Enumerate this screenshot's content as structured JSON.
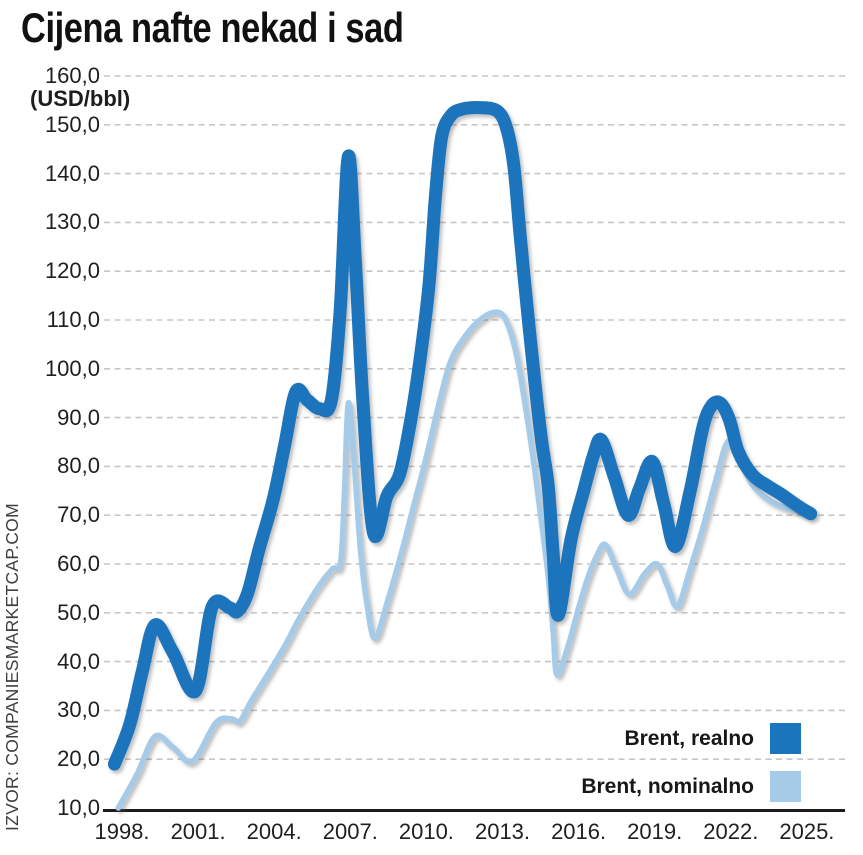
{
  "title": "Cijena nafte nekad i sad",
  "y_axis": {
    "unit_label": "(USD/bbl)",
    "tick_labels": [
      "160,0",
      "150,0",
      "140,0",
      "130,0",
      "120,0",
      "110,0",
      "100,0",
      "90,0",
      "80,0",
      "70,0",
      "60,0",
      "50,0",
      "40,0",
      "30,0",
      "20,0",
      "10,0"
    ]
  },
  "x_axis": {
    "tick_labels": [
      "1998.",
      "2001.",
      "2004.",
      "2007.",
      "2010.",
      "2013.",
      "2016.",
      "2019.",
      "2022.",
      "2025."
    ]
  },
  "legend": {
    "items": [
      {
        "label": "Brent, realno",
        "color": "#1b75bc"
      },
      {
        "label": "Brent, nominalno",
        "color": "#a6cbe8"
      }
    ]
  },
  "source": "IZVOR: COMPANIESMARKETCAP.COM",
  "chart_data": {
    "type": "line",
    "title": "Cijena nafte nekad i sad",
    "ylabel": "(USD/bbl)",
    "ylim": [
      10,
      160
    ],
    "y_tick_step": 10,
    "x_ticks": [
      1998,
      2001,
      2004,
      2007,
      2010,
      2013,
      2016,
      2019,
      2022,
      2025
    ],
    "x_range_plotted": [
      1997.7,
      2025.15
    ],
    "grid": "horizontal-dashed",
    "legend_position": "bottom-right",
    "series": [
      {
        "name": "Brent, realno",
        "color": "#1b75bc",
        "stroke_width": 13,
        "points": [
          [
            1997.7,
            19
          ],
          [
            1998.3,
            27
          ],
          [
            1998.8,
            38
          ],
          [
            1999.3,
            47.5
          ],
          [
            2000.0,
            42
          ],
          [
            2000.9,
            34
          ],
          [
            2001.55,
            51.2
          ],
          [
            2002.25,
            51
          ],
          [
            2002.55,
            50.3
          ],
          [
            2002.95,
            54
          ],
          [
            2003.4,
            63
          ],
          [
            2003.95,
            73
          ],
          [
            2004.4,
            84
          ],
          [
            2004.85,
            95.3
          ],
          [
            2005.3,
            93.6
          ],
          [
            2005.8,
            91.8
          ],
          [
            2006.25,
            93.5
          ],
          [
            2006.6,
            112
          ],
          [
            2006.92,
            143.5
          ],
          [
            2007.2,
            122
          ],
          [
            2007.5,
            93
          ],
          [
            2007.92,
            66.3
          ],
          [
            2008.45,
            74
          ],
          [
            2008.95,
            78.5
          ],
          [
            2009.4,
            90
          ],
          [
            2009.75,
            102
          ],
          [
            2010.1,
            117
          ],
          [
            2010.35,
            135
          ],
          [
            2010.6,
            147.5
          ],
          [
            2010.95,
            151.8
          ],
          [
            2011.4,
            153.2
          ],
          [
            2012.2,
            153.5
          ],
          [
            2012.8,
            152.8
          ],
          [
            2013.15,
            149.5
          ],
          [
            2013.45,
            141.5
          ],
          [
            2013.7,
            127
          ],
          [
            2014.0,
            111
          ],
          [
            2014.3,
            96
          ],
          [
            2014.55,
            85
          ],
          [
            2014.8,
            76
          ],
          [
            2015.0,
            62
          ],
          [
            2015.2,
            49.5
          ],
          [
            2015.7,
            65
          ],
          [
            2016.2,
            75
          ],
          [
            2016.6,
            82.5
          ],
          [
            2016.9,
            85.4
          ],
          [
            2017.4,
            78
          ],
          [
            2017.95,
            70
          ],
          [
            2018.4,
            75.5
          ],
          [
            2018.9,
            81
          ],
          [
            2019.35,
            72.5
          ],
          [
            2019.82,
            63.6
          ],
          [
            2020.4,
            75
          ],
          [
            2020.9,
            88
          ],
          [
            2021.25,
            92.5
          ],
          [
            2021.6,
            92.9
          ],
          [
            2021.95,
            89.5
          ],
          [
            2022.3,
            83
          ],
          [
            2022.85,
            78.3
          ],
          [
            2023.45,
            76
          ],
          [
            2023.95,
            74.4
          ],
          [
            2024.7,
            71.7
          ],
          [
            2025.15,
            70.3
          ]
        ]
      },
      {
        "name": "Brent, nominalno",
        "color": "#a6cbe8",
        "stroke_width": 5.5,
        "points": [
          [
            1997.85,
            10
          ],
          [
            1998.6,
            17
          ],
          [
            1999.3,
            24.7
          ],
          [
            2000.0,
            22.5
          ],
          [
            2000.78,
            19.6
          ],
          [
            2001.7,
            27.5
          ],
          [
            2002.3,
            28.3
          ],
          [
            2002.65,
            27.8
          ],
          [
            2003.1,
            32
          ],
          [
            2003.9,
            38.7
          ],
          [
            2004.5,
            44
          ],
          [
            2005.0,
            49
          ],
          [
            2005.8,
            55.8
          ],
          [
            2006.3,
            59
          ],
          [
            2006.62,
            60.5
          ],
          [
            2006.77,
            75
          ],
          [
            2006.92,
            93
          ],
          [
            2007.15,
            81
          ],
          [
            2007.4,
            63
          ],
          [
            2007.65,
            52
          ],
          [
            2007.97,
            44.8
          ],
          [
            2008.5,
            53
          ],
          [
            2009.0,
            62
          ],
          [
            2009.5,
            72
          ],
          [
            2010.0,
            82
          ],
          [
            2010.5,
            93
          ],
          [
            2010.95,
            101.5
          ],
          [
            2011.5,
            106.5
          ],
          [
            2012.1,
            110
          ],
          [
            2012.7,
            111.6
          ],
          [
            2013.1,
            110.3
          ],
          [
            2013.5,
            104
          ],
          [
            2013.85,
            94
          ],
          [
            2014.2,
            82
          ],
          [
            2014.5,
            70
          ],
          [
            2014.8,
            57.5
          ],
          [
            2015.0,
            46
          ],
          [
            2015.15,
            37.3
          ],
          [
            2015.6,
            43.5
          ],
          [
            2016.0,
            51
          ],
          [
            2016.35,
            57
          ],
          [
            2016.7,
            61.5
          ],
          [
            2017.05,
            64
          ],
          [
            2017.5,
            59
          ],
          [
            2018.0,
            53.8
          ],
          [
            2018.6,
            58
          ],
          [
            2019.1,
            60
          ],
          [
            2019.5,
            55.5
          ],
          [
            2019.9,
            51.3
          ],
          [
            2020.4,
            59
          ],
          [
            2020.9,
            67.5
          ],
          [
            2021.4,
            77
          ],
          [
            2021.9,
            85.2
          ],
          [
            2022.4,
            80.5
          ],
          [
            2022.9,
            75.9
          ],
          [
            2023.45,
            73.3
          ],
          [
            2024.0,
            71.8
          ],
          [
            2024.7,
            70.8
          ],
          [
            2025.1,
            70
          ]
        ]
      }
    ]
  }
}
